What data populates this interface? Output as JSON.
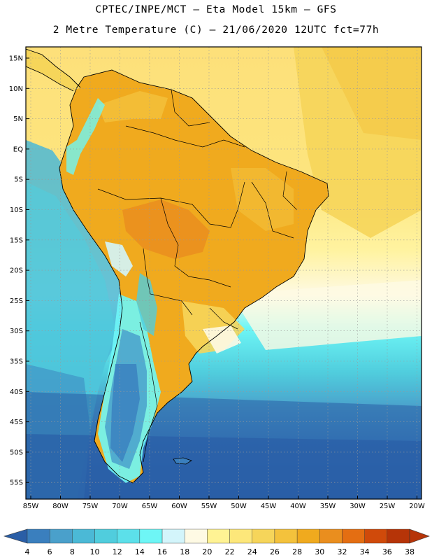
{
  "title": {
    "line1": "CPTEC/INPE/MCT –  Eta Model 15km – GFS",
    "line2": "2 Metre Temperature (C) – 21/06/2020 12UTC fct=77h"
  },
  "lat_labels": [
    "15N",
    "10N",
    "5N",
    "EQ",
    "5S",
    "10S",
    "15S",
    "20S",
    "25S",
    "30S",
    "35S",
    "40S",
    "45S",
    "50S",
    "55S"
  ],
  "lon_labels": [
    "85W",
    "80W",
    "75W",
    "70W",
    "65W",
    "60W",
    "55W",
    "50W",
    "45W",
    "40W",
    "35W",
    "30W",
    "25W",
    "20W"
  ],
  "colorbar": {
    "ticks": [
      "4",
      "6",
      "8",
      "10",
      "12",
      "14",
      "16",
      "18",
      "20",
      "22",
      "24",
      "26",
      "28",
      "30",
      "32",
      "34",
      "36",
      "38"
    ],
    "colors": [
      "#2a5ea6",
      "#3a7fbe",
      "#4aa0cb",
      "#4bb9d6",
      "#50cddd",
      "#5ce0ea",
      "#6ef6f6",
      "#d3f5fb",
      "#fefae4",
      "#fff394",
      "#fde77a",
      "#f6d55a",
      "#f4c23c",
      "#f0aa1e",
      "#ea8e1e",
      "#e46e12",
      "#d04a0a",
      "#b63408"
    ],
    "low_extend_color": "#2a5ea6",
    "high_extend_color": "#b63408"
  }
}
